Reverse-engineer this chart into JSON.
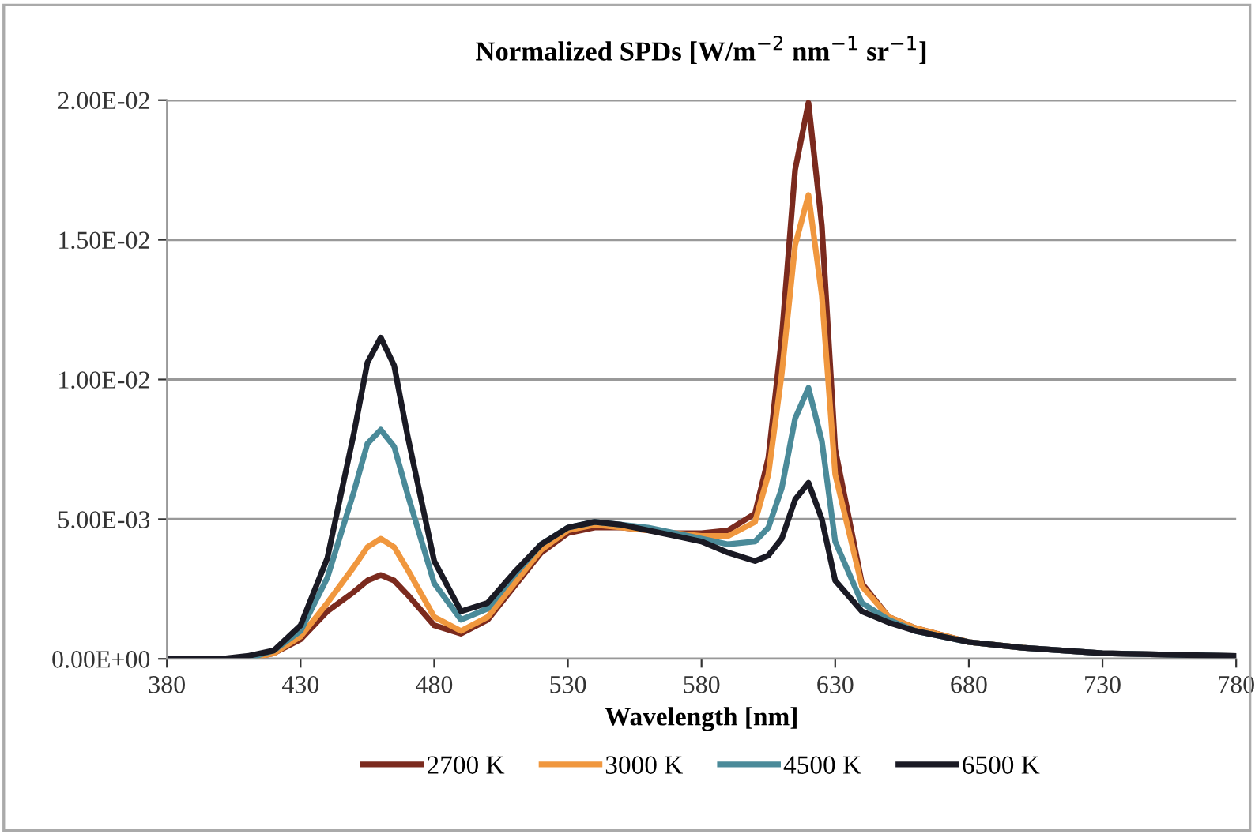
{
  "chart_data": {
    "type": "line",
    "title": "Normalized SPDs [W/m$^{−2}$ nm$^{−1}$ sr$^{−1}$]",
    "xlabel": "Wavelength [nm]",
    "x": [
      380,
      400,
      410,
      420,
      430,
      440,
      450,
      455,
      460,
      465,
      470,
      480,
      490,
      500,
      510,
      520,
      530,
      540,
      550,
      560,
      570,
      580,
      590,
      600,
      605,
      610,
      615,
      620,
      625,
      630,
      640,
      650,
      660,
      680,
      700,
      730,
      780
    ],
    "series": [
      {
        "name": "2700 K",
        "color": "#7b2a1e",
        "values": [
          0,
          0,
          0,
          0.0002,
          0.0007,
          0.0017,
          0.0024,
          0.0028,
          0.003,
          0.0028,
          0.0023,
          0.0012,
          0.0009,
          0.0014,
          0.0026,
          0.0038,
          0.0045,
          0.0047,
          0.0047,
          0.0046,
          0.0045,
          0.0045,
          0.0046,
          0.0052,
          0.0072,
          0.0115,
          0.0175,
          0.0199,
          0.0155,
          0.0075,
          0.0027,
          0.0015,
          0.0011,
          0.0006,
          0.0004,
          0.0002,
          0.0001
        ]
      },
      {
        "name": "3000 K",
        "color": "#f0973e",
        "values": [
          0,
          0,
          0,
          0.0002,
          0.0008,
          0.002,
          0.0033,
          0.004,
          0.0043,
          0.004,
          0.0032,
          0.0015,
          0.001,
          0.0015,
          0.0027,
          0.0039,
          0.0046,
          0.0048,
          0.0047,
          0.0046,
          0.0045,
          0.0044,
          0.0044,
          0.0049,
          0.0066,
          0.0102,
          0.0148,
          0.0166,
          0.013,
          0.0066,
          0.0026,
          0.0015,
          0.0011,
          0.0006,
          0.0004,
          null,
          null
        ]
      },
      {
        "name": "4500 K",
        "color": "#4a8a99",
        "values": [
          0,
          0,
          0,
          0.0003,
          0.001,
          0.0029,
          0.006,
          0.0077,
          0.0082,
          0.0076,
          0.0059,
          0.0027,
          0.0014,
          0.0018,
          0.003,
          0.0041,
          0.0047,
          0.0049,
          0.0048,
          0.0047,
          0.0045,
          0.0043,
          0.0041,
          0.0042,
          0.0047,
          0.0061,
          0.0086,
          0.0097,
          0.0078,
          0.0042,
          0.002,
          0.0014,
          0.001,
          0.0006,
          0.0004,
          0.0002,
          0.0001
        ]
      },
      {
        "name": "6500 K",
        "color": "#1a1a24",
        "values": [
          0,
          0,
          0.0001,
          0.0003,
          0.0012,
          0.0036,
          0.0081,
          0.0106,
          0.0115,
          0.0105,
          0.008,
          0.0035,
          0.0017,
          0.002,
          0.0031,
          0.0041,
          0.0047,
          0.0049,
          0.0048,
          0.0046,
          0.0044,
          0.0042,
          0.0038,
          0.0035,
          0.0037,
          0.0043,
          0.0057,
          0.0063,
          0.005,
          0.0028,
          0.0017,
          0.0013,
          0.001,
          0.0006,
          0.0004,
          0.0002,
          0.0001
        ]
      }
    ],
    "xlim": [
      380,
      780
    ],
    "xticks": [
      380,
      430,
      480,
      530,
      580,
      630,
      680,
      730,
      780
    ],
    "ylim": [
      0,
      0.02
    ],
    "yticks": [
      {
        "value": 0,
        "label": "0.00E+00"
      },
      {
        "value": 0.005,
        "label": "5.00E-03"
      },
      {
        "value": 0.01,
        "label": "1.00E-02"
      },
      {
        "value": 0.015,
        "label": "1.50E-02"
      },
      {
        "value": 0.02,
        "label": "2.00E-02"
      }
    ],
    "grid": "y",
    "legend": "bottom",
    "marker": "none",
    "line_style": "solid"
  }
}
